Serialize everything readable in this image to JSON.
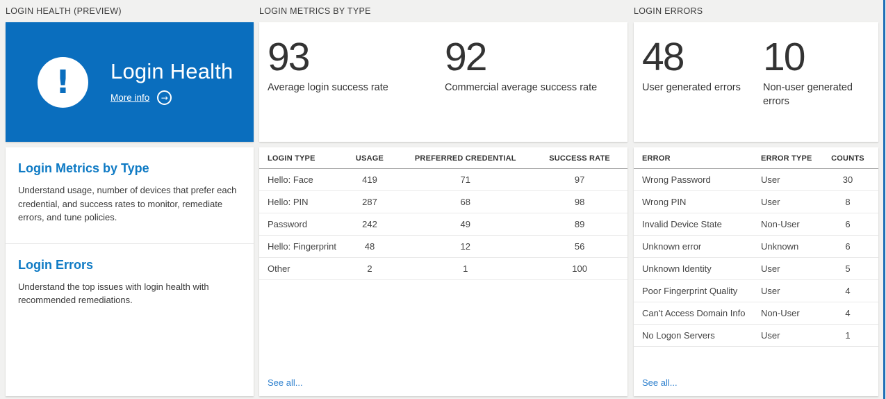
{
  "colors": {
    "tile_blue": "#0a6ebe",
    "heading_blue": "#0e7ac4",
    "link_blue": "#2e80ce",
    "page_background": "#f1f1f0",
    "stat_text": "#333333"
  },
  "icons": {
    "exclamation": "!",
    "arrow_right": "→"
  },
  "panels": {
    "login_health": {
      "header": "LOGIN HEALTH (PREVIEW)",
      "tile": {
        "title": "Login Health",
        "more_info_label": "More info"
      },
      "sections": [
        {
          "title": "Login Metrics by Type",
          "description": "Understand usage, number of devices that prefer each credential, and success rates to monitor, remediate errors, and tune policies."
        },
        {
          "title": "Login Errors",
          "description": "Understand the top issues with login health with recommended remediations."
        }
      ]
    },
    "login_metrics": {
      "header": "LOGIN METRICS BY TYPE",
      "stats": [
        {
          "value": "93",
          "label": "Average login success rate"
        },
        {
          "value": "92",
          "label": "Commercial average success rate"
        }
      ],
      "table": {
        "columns": [
          "LOGIN TYPE",
          "USAGE",
          "PREFERRED CREDENTIAL",
          "SUCCESS RATE"
        ],
        "rows": [
          [
            "Hello: Face",
            419,
            71,
            97
          ],
          [
            "Hello: PIN",
            287,
            68,
            98
          ],
          [
            "Password",
            242,
            49,
            89
          ],
          [
            "Hello: Fingerprint",
            48,
            12,
            56
          ],
          [
            "Other",
            2,
            1,
            100
          ]
        ]
      },
      "see_all_label": "See all..."
    },
    "login_errors": {
      "header": "LOGIN ERRORS",
      "stats": [
        {
          "value": "48",
          "label": "User generated errors"
        },
        {
          "value": "10",
          "label": "Non-user generated errors"
        }
      ],
      "table": {
        "columns": [
          "ERROR",
          "ERROR TYPE",
          "COUNTS"
        ],
        "rows": [
          [
            "Wrong Password",
            "User",
            30
          ],
          [
            "Wrong PIN",
            "User",
            8
          ],
          [
            "Invalid Device State",
            "Non-User",
            6
          ],
          [
            "Unknown error",
            "Unknown",
            6
          ],
          [
            "Unknown Identity",
            "User",
            5
          ],
          [
            "Poor Fingerprint Quality",
            "User",
            4
          ],
          [
            "Can't Access Domain Info",
            "Non-User",
            4
          ],
          [
            "No Logon Servers",
            "User",
            1
          ]
        ]
      },
      "see_all_label": "See all..."
    }
  }
}
